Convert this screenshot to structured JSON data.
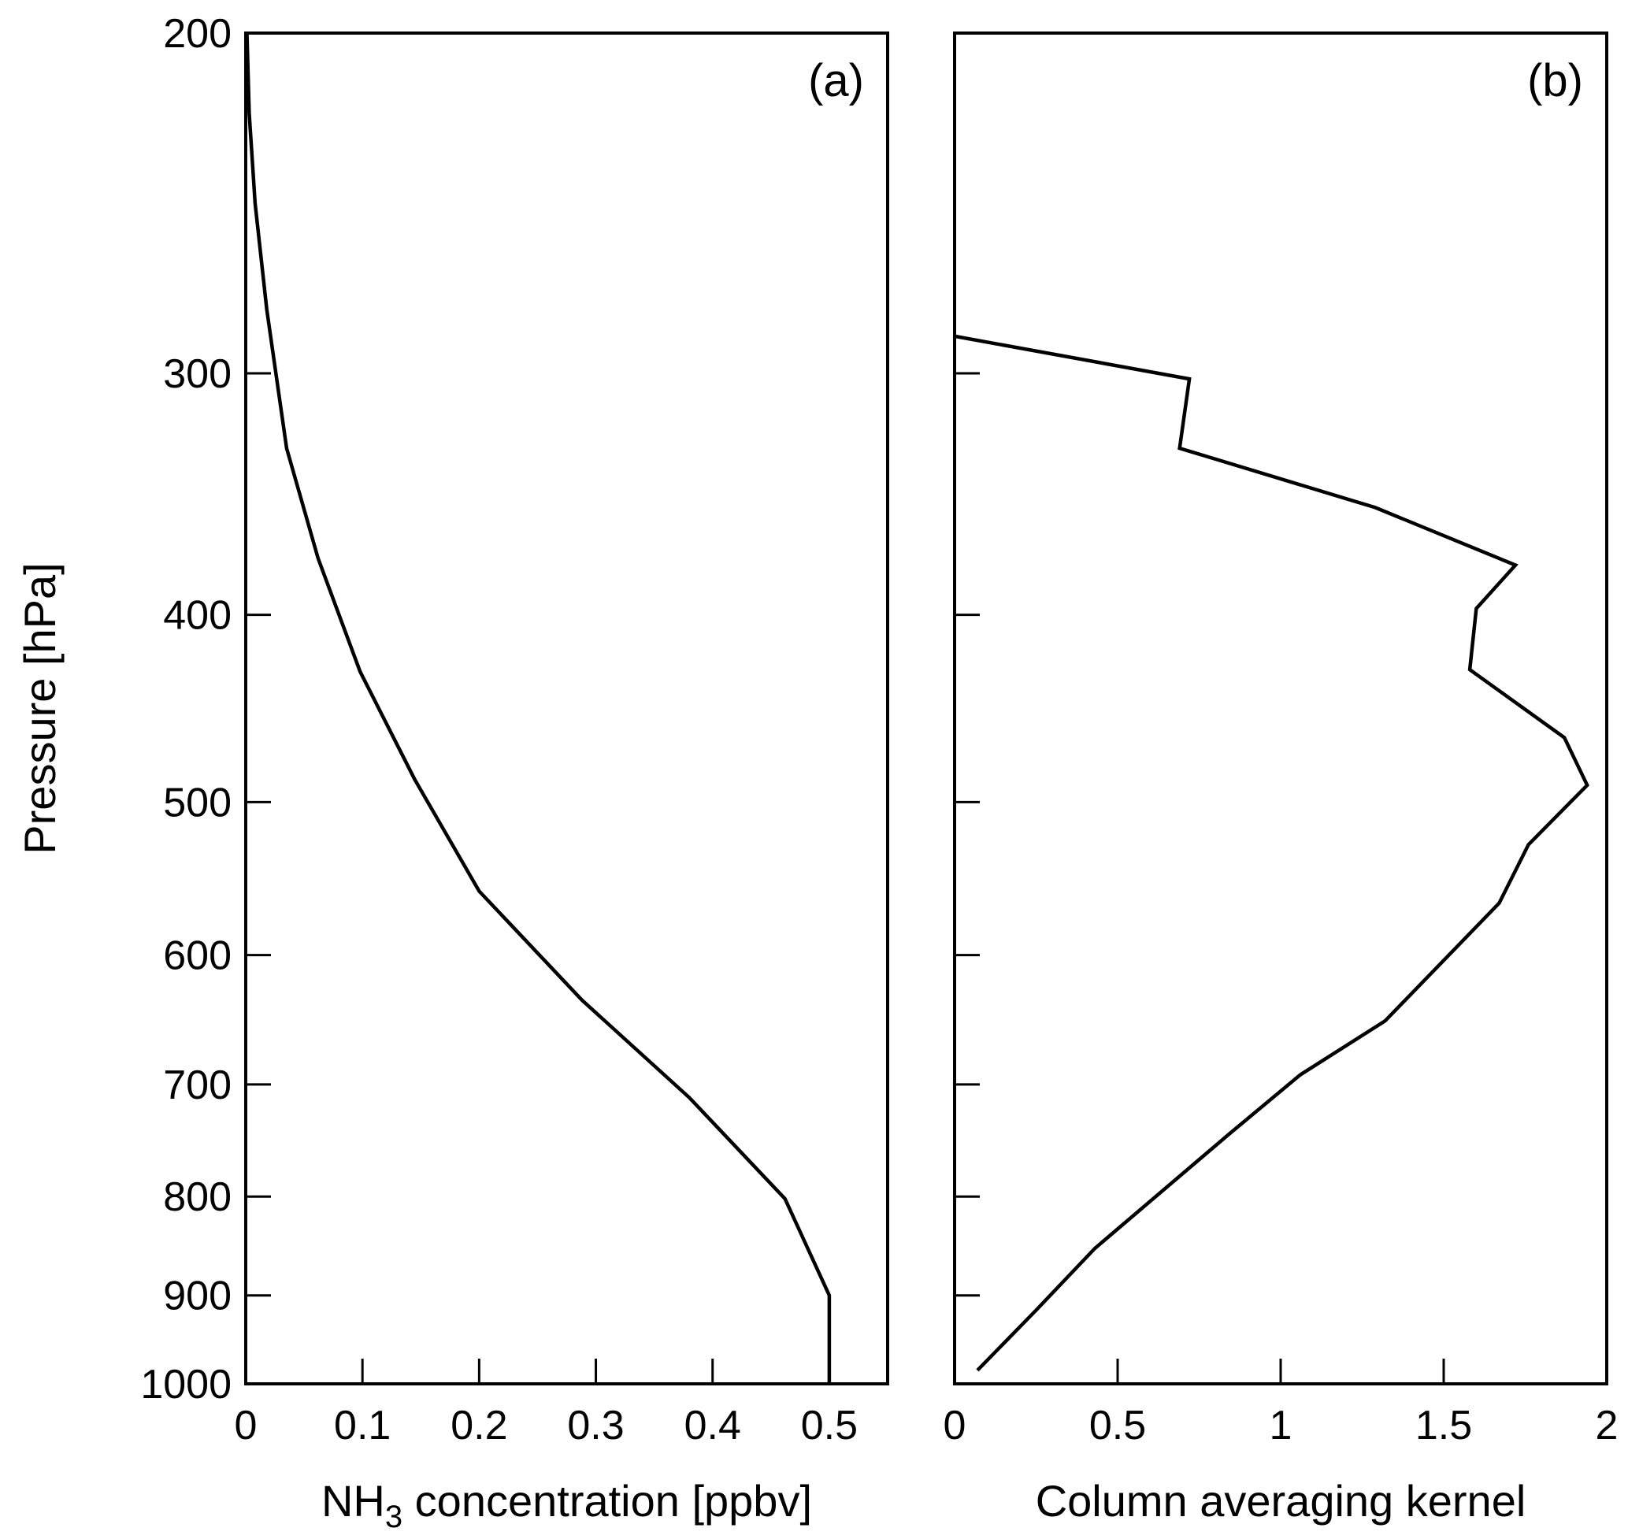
{
  "chart_data": [
    {
      "type": "line",
      "panel_label": "(a)",
      "xlabel_main": "NH",
      "xlabel_sub": "3",
      "xlabel_rest": " concentration [ppbv]",
      "ylabel": "Pressure [hPa]",
      "xlim": [
        0,
        0.55
      ],
      "ylim": [
        200,
        1000
      ],
      "y_scale": "log",
      "y_inverted": true,
      "xticks": [
        0,
        0.1,
        0.2,
        0.3,
        0.4,
        0.5
      ],
      "xtick_labels": [
        "0",
        "0.1",
        "0.2",
        "0.3",
        "0.4",
        "0.5"
      ],
      "yticks": [
        200,
        300,
        400,
        500,
        600,
        700,
        800,
        900,
        1000
      ],
      "ytick_labels": [
        "200",
        "300",
        "400",
        "500",
        "600",
        "700",
        "800",
        "900",
        "1000"
      ],
      "grid": false,
      "series": [
        {
          "x": [
            0.001,
            0.003,
            0.008,
            0.018,
            0.035,
            0.062,
            0.098,
            0.145,
            0.2,
            0.288,
            0.38,
            0.462,
            0.5,
            0.5
          ],
          "y": [
            200,
            220,
            245,
            278,
            328,
            374,
            428,
            487,
            556,
            633,
            711,
            802,
            900,
            1000
          ]
        }
      ]
    },
    {
      "type": "line",
      "panel_label": "(b)",
      "xlabel": "Column averaging kernel",
      "xlim": [
        0,
        2
      ],
      "ylim": [
        200,
        1000
      ],
      "y_scale": "log",
      "y_inverted": true,
      "xticks": [
        0,
        0.5,
        1,
        1.5,
        2
      ],
      "xtick_labels": [
        "0",
        "0.5",
        "1",
        "1.5",
        "2"
      ],
      "yticks": [
        200,
        300,
        400,
        500,
        600,
        700,
        800,
        900,
        1000
      ],
      "grid": false,
      "series": [
        {
          "x": [
            0,
            0.72,
            0.69,
            1.29,
            1.72,
            1.6,
            1.58,
            1.87,
            1.94,
            1.76,
            1.67,
            1.32,
            1.06,
            0.84,
            0.43,
            0.25,
            0.07
          ],
          "y": [
            287,
            302,
            328,
            352,
            377,
            397,
            427,
            463,
            490,
            526,
            564,
            649,
            692,
            743,
            851,
            916,
            984
          ]
        }
      ]
    }
  ]
}
